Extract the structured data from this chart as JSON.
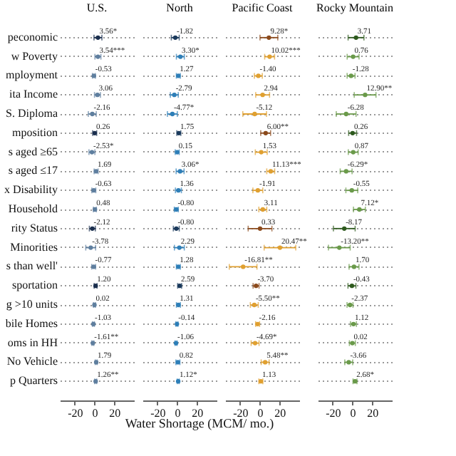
{
  "chart_data": [
    {
      "type": "scatter",
      "title": "U.S.",
      "orientation": "horizontal",
      "marker": "circle",
      "grid": "y",
      "xlim": [
        -35,
        40
      ],
      "xticks": [
        -20,
        0,
        20
      ],
      "categories": [
        "peconomic",
        "w Poverty",
        "mployment",
        "ita Income",
        "S. Diploma",
        "mposition",
        "s aged ≥65",
        "s aged ≤17",
        "x Disability",
        "Household",
        "rity Status",
        "Minorities",
        "s than well'",
        "sportation",
        "g >10 units",
        "bile Homes",
        "oms in HH",
        "No Vehicle",
        "p Quarters"
      ],
      "values": [
        3.56,
        3.54,
        -0.53,
        3.06,
        -2.16,
        0.26,
        -2.53,
        1.69,
        -0.63,
        0.48,
        -2.12,
        -3.78,
        -0.77,
        1.2,
        0.02,
        -1.03,
        -1.61,
        1.79,
        1.26
      ],
      "errors": [
        4,
        3,
        1.5,
        3,
        4,
        2,
        3,
        2,
        2,
        1.5,
        3,
        5,
        2,
        1.5,
        1,
        1,
        1,
        1,
        1
      ],
      "value_labels": [
        "3.56*",
        "3.54***",
        "-0.53",
        "3.06",
        "-2.16",
        "0.26",
        "-2.53*",
        "1.69",
        "-0.63",
        "0.48",
        "-2.12",
        "-3.78",
        "-0.77",
        "1.20",
        "0.02",
        "-1.03",
        "-1.61**",
        "1.79",
        "1.26**"
      ],
      "colors": [
        "#1b2f4e",
        "#5f7f9f",
        "#5f7f9f",
        "#5f7f9f",
        "#5f7f9f",
        "#1b2f4e",
        "#5f7f9f",
        "#5f7f9f",
        "#5f7f9f",
        "#5f7f9f",
        "#1b2f4e",
        "#5f7f9f",
        "#5f7f9f",
        "#1b2f4e",
        "#5f7f9f",
        "#5f7f9f",
        "#5f7f9f",
        "#5f7f9f",
        "#5f7f9f"
      ]
    },
    {
      "type": "scatter",
      "title": "North",
      "orientation": "horizontal",
      "marker": "circle",
      "grid": "y",
      "tick_labels": "x",
      "xlim": [
        -35,
        40
      ],
      "xticks": [
        -20,
        0,
        20
      ],
      "xlabel": "Water Shortage (MCM/ mo.)",
      "categories": [
        null,
        null,
        null,
        null,
        null,
        null,
        null,
        null,
        null,
        null,
        null,
        null,
        null,
        null,
        null,
        null,
        null,
        null,
        null
      ],
      "values": [
        -1.82,
        3.3,
        1.27,
        -2.79,
        -4.77,
        1.75,
        0.15,
        3.06,
        1.36,
        -0.8,
        -0.8,
        2.29,
        1.28,
        2.59,
        1.31,
        -0.14,
        -1.06,
        0.82,
        1.12
      ],
      "errors": [
        4,
        4,
        2,
        4,
        5,
        2,
        2,
        4,
        3,
        2,
        3,
        5,
        2,
        2,
        2,
        1,
        1,
        2,
        1
      ],
      "value_labels": [
        "-1.82",
        "3.30*",
        "1.27",
        "-2.79",
        "-4.77*",
        "1.75",
        "0.15",
        "3.06*",
        "1.36",
        "-0.80",
        "-0.80",
        "2.29",
        "1.28",
        "2.59",
        "1.31",
        "-0.14",
        "-1.06",
        "0.82",
        "1.12*"
      ],
      "colors": [
        "#1b3a5c",
        "#2e7fb8",
        "#2e7fb8",
        "#2e7fb8",
        "#2e7fb8",
        "#1b3a5c",
        "#2e7fb8",
        "#2e7fb8",
        "#2e7fb8",
        "#2e7fb8",
        "#1b3a5c",
        "#2e7fb8",
        "#2e7fb8",
        "#1b3a5c",
        "#2e7fb8",
        "#2e7fb8",
        "#2e7fb8",
        "#2e7fb8",
        "#2e7fb8"
      ]
    },
    {
      "type": "scatter",
      "title": "Pacific Coast",
      "orientation": "horizontal",
      "marker": "circle",
      "grid": "y",
      "tick_labels": "x",
      "xlim": [
        -35,
        40
      ],
      "xticks": [
        -20,
        0,
        20
      ],
      "categories": [
        null,
        null,
        null,
        null,
        null,
        null,
        null,
        null,
        null,
        null,
        null,
        null,
        null,
        null,
        null,
        null,
        null,
        null,
        null
      ],
      "values": [
        9.28,
        10.02,
        -1.4,
        2.94,
        -5.12,
        6.0,
        1.53,
        11.13,
        -1.91,
        3.11,
        0.33,
        20.47,
        -16.81,
        -3.7,
        -5.5,
        -2.16,
        -4.69,
        5.48,
        1.13
      ],
      "errors": [
        9,
        5,
        4,
        7,
        12,
        5,
        6,
        4,
        5,
        4,
        12,
        16,
        14,
        3,
        4,
        2,
        4,
        4,
        2
      ],
      "value_labels": [
        "9.28*",
        "10.02***",
        "-1.40",
        "2.94",
        "-5.12",
        "6.00**",
        "1.53",
        "11.13***",
        "-1.91",
        "3.11",
        "0.33",
        "20.47**",
        "-16.81**",
        "-3.70",
        "-5.50**",
        "-2.16",
        "-4.69*",
        "5.48**",
        "1.13"
      ],
      "colors": [
        "#8b4a1c",
        "#e0a030",
        "#e0a030",
        "#e0a030",
        "#e0a030",
        "#8b4a1c",
        "#e0a030",
        "#e0a030",
        "#e0a030",
        "#e0a030",
        "#8b4a1c",
        "#e0a030",
        "#e0a030",
        "#8b4a1c",
        "#e0a030",
        "#e0a030",
        "#e0a030",
        "#e0a030",
        "#e0a030"
      ]
    },
    {
      "type": "scatter",
      "title": "Rocky Mountain",
      "orientation": "horizontal",
      "marker": "circle",
      "grid": "y",
      "tick_labels": "x",
      "xlim": [
        -35,
        40
      ],
      "xticks": [
        -20,
        0,
        20
      ],
      "categories": [
        null,
        null,
        null,
        null,
        null,
        null,
        null,
        null,
        null,
        null,
        null,
        null,
        null,
        null,
        null,
        null,
        null,
        null,
        null
      ],
      "values": [
        3.71,
        0.76,
        -1.28,
        12.9,
        -6.28,
        0.26,
        0.87,
        -6.29,
        -0.55,
        7.12,
        -8.17,
        -13.2,
        1.7,
        -0.43,
        -2.37,
        1.12,
        0.02,
        -3.66,
        2.68
      ],
      "errors": [
        8,
        6,
        4,
        11,
        10,
        4,
        5,
        6,
        6,
        6,
        11,
        11,
        5,
        4,
        3,
        3,
        3,
        4,
        2
      ],
      "value_labels": [
        "3.71",
        "0.76",
        "-1.28",
        "12.90**",
        "-6.28",
        "0.26",
        "0.87",
        "-6.29*",
        "-0.55",
        "7.12*",
        "-8.17",
        "-13.20**",
        "1.70",
        "-0.43",
        "-2.37",
        "1.12",
        "0.02",
        "-3.66",
        "2.68*"
      ],
      "colors": [
        "#2e5a1e",
        "#6a9a4a",
        "#6a9a4a",
        "#6a9a4a",
        "#6a9a4a",
        "#2e5a1e",
        "#6a9a4a",
        "#6a9a4a",
        "#6a9a4a",
        "#6a9a4a",
        "#2e5a1e",
        "#6a9a4a",
        "#6a9a4a",
        "#2e5a1e",
        "#6a9a4a",
        "#6a9a4a",
        "#6a9a4a",
        "#6a9a4a",
        "#6a9a4a"
      ]
    }
  ]
}
